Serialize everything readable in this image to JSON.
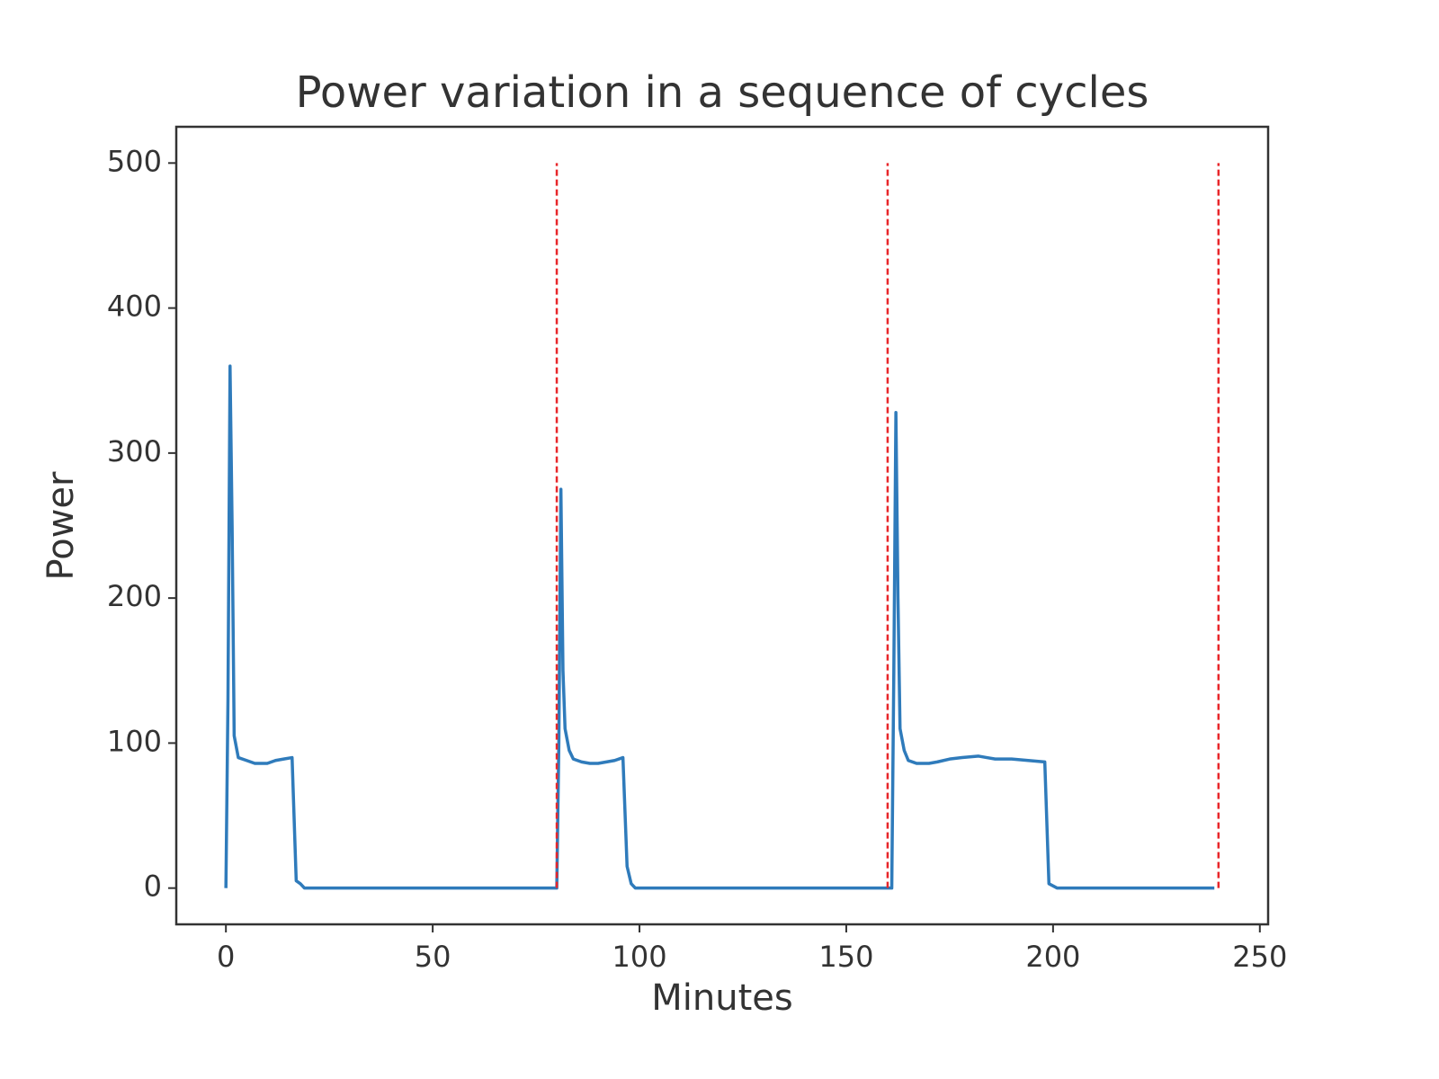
{
  "chart_data": {
    "type": "line",
    "title": "Power variation in a sequence of cycles",
    "xlabel": "Minutes",
    "ylabel": "Power",
    "x": [
      0,
      0.5,
      1,
      1.5,
      2,
      3,
      5,
      7,
      10,
      12,
      14,
      16,
      17,
      18,
      19,
      79,
      80,
      80.5,
      81,
      81.5,
      82,
      83,
      84,
      86,
      88,
      90,
      92,
      94,
      96,
      97,
      98,
      99,
      160,
      161,
      161.5,
      162,
      162.5,
      163,
      164,
      165,
      167,
      170,
      172,
      175,
      178,
      182,
      184,
      186,
      190,
      194,
      198,
      199,
      201,
      239
    ],
    "series": [
      {
        "color": "#2f7bbb",
        "values": [
          0,
          130,
          360,
          250,
          105,
          90,
          88,
          86,
          86,
          88,
          89,
          90,
          5,
          3,
          0,
          0,
          0,
          100,
          275,
          150,
          110,
          95,
          89,
          87,
          86,
          86,
          87,
          88,
          90,
          15,
          3,
          0,
          0,
          0,
          150,
          328,
          200,
          110,
          95,
          88,
          86,
          86,
          87,
          89,
          90,
          91,
          90,
          89,
          89,
          88,
          87,
          3,
          0,
          0
        ]
      }
    ],
    "vlines": {
      "x": [
        80,
        160,
        240
      ],
      "ymin": 0,
      "ymax": 500,
      "color": "#e8262a"
    },
    "xlim": [
      -12,
      252
    ],
    "xticks": [
      0,
      50,
      100,
      150,
      200,
      250
    ],
    "ylim": [
      -25,
      525
    ],
    "yticks": [
      0,
      100,
      200,
      300,
      400,
      500
    ]
  }
}
